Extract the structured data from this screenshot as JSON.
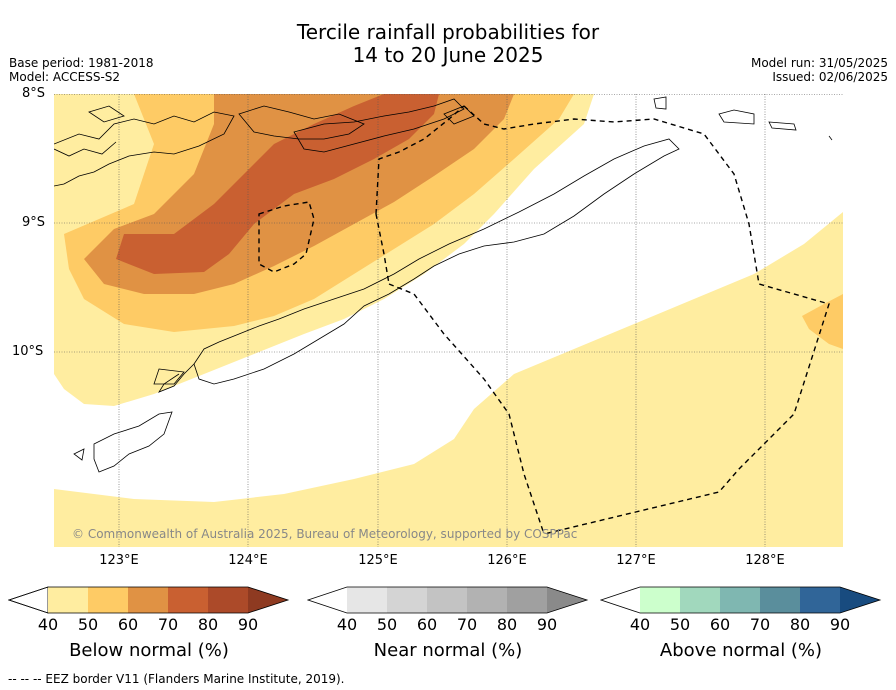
{
  "title_line1": "Tercile rainfall probabilities for",
  "title_line2": "14 to 20 June 2025",
  "base_period": "Base period: 1981-2018",
  "model": "Model: ACCESS-S2",
  "model_run": "Model run: 31/05/2025",
  "issued": "Issued: 02/06/2025",
  "lat_labels": [
    "8°S",
    "9°S",
    "10°S"
  ],
  "lon_labels": [
    "123°E",
    "124°E",
    "125°E",
    "126°E",
    "127°E",
    "128°E"
  ],
  "copyright": "© Commonwealth of Australia 2025, Bureau of Meteorology, supported by COSPPac",
  "colorbars": [
    {
      "label": "Below normal (%)",
      "ticks": [
        "40",
        "50",
        "60",
        "70",
        "80",
        "90"
      ],
      "colors": [
        "#ffffff",
        "#ffeda0",
        "#fecb65",
        "#e09244",
        "#c96031",
        "#ac4a29",
        "#8e3a21"
      ]
    },
    {
      "label": "Near normal (%)",
      "ticks": [
        "40",
        "50",
        "60",
        "70",
        "80",
        "90"
      ],
      "colors": [
        "#ffffff",
        "#e6e6e6",
        "#d4d4d4",
        "#c3c3c3",
        "#b2b2b2",
        "#a0a0a0",
        "#8a8a8a"
      ]
    },
    {
      "label": "Above normal (%)",
      "ticks": [
        "40",
        "50",
        "60",
        "70",
        "80",
        "90"
      ],
      "colors": [
        "#ffffff",
        "#ccffcc",
        "#a1d8bd",
        "#7fb7b1",
        "#5a8e9c",
        "#306598",
        "#184b7f"
      ]
    }
  ],
  "footer": "--  --  -- EEZ border V11 (Flanders Marine Institute, 2019)."
}
